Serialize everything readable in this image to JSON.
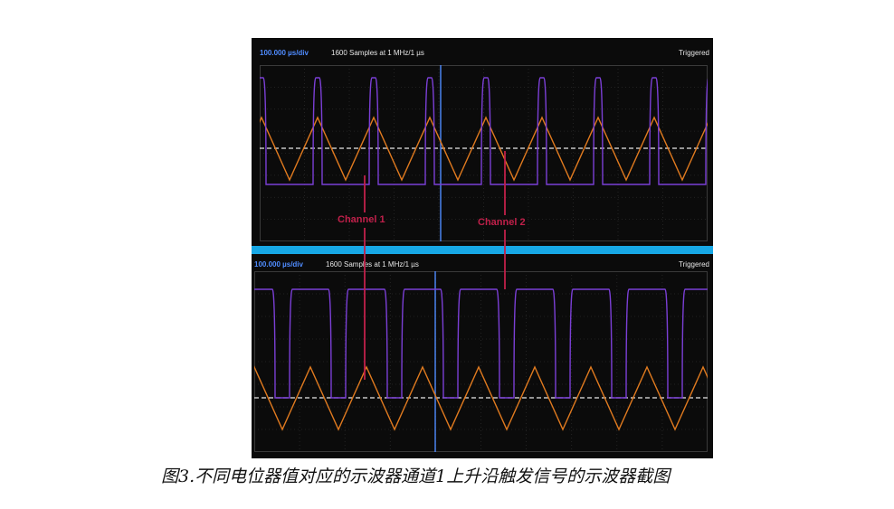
{
  "panel_top": {
    "timebase": "100.000 µs/div",
    "samples": "1600 Samples at 1 MHz/1 µs",
    "status": "Triggered"
  },
  "panel_bottom": {
    "timebase": "100.000 µs/div",
    "samples": "1600 Samples at 1 MHz/1 µs",
    "status": "Triggered"
  },
  "annotations": {
    "channel1": "Channel 1",
    "channel2": "Channel 2"
  },
  "caption": "图3.不同电位器值对应的示波器通道1上升沿触发信号的示波器截图",
  "colors": {
    "triangle_wave": "#e07a1f",
    "square_wave": "#7b3fd6",
    "trigger_cursor": "#4f8cff",
    "annotation": "#c0204a",
    "separator": "#17a8e6"
  }
}
